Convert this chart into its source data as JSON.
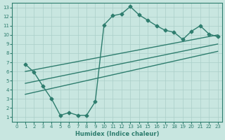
{
  "xlabel": "Humidex (Indice chaleur)",
  "xlim": [
    -0.5,
    23.5
  ],
  "ylim": [
    0.5,
    13.5
  ],
  "xticks": [
    0,
    1,
    2,
    3,
    4,
    5,
    6,
    7,
    8,
    9,
    10,
    11,
    12,
    13,
    14,
    15,
    16,
    17,
    18,
    19,
    20,
    21,
    22,
    23
  ],
  "yticks": [
    1,
    2,
    3,
    4,
    5,
    6,
    7,
    8,
    9,
    10,
    11,
    12,
    13
  ],
  "line_color": "#2e7d6e",
  "bg_color": "#c8e6e0",
  "grid_color": "#aacec8",
  "curve_x": [
    1,
    2,
    3,
    4,
    5,
    6,
    7,
    8,
    9,
    10,
    11,
    12,
    13,
    14,
    15,
    16,
    17,
    18,
    19,
    20,
    21,
    22,
    23
  ],
  "curve_y": [
    6.8,
    5.9,
    4.4,
    3.0,
    1.2,
    1.5,
    1.2,
    1.2,
    2.7,
    11.1,
    12.1,
    12.3,
    13.1,
    12.2,
    11.6,
    11.0,
    10.5,
    10.3,
    9.5,
    10.4,
    11.0,
    10.1,
    9.8
  ],
  "line2_x": [
    1,
    23
  ],
  "line2_y": [
    6.0,
    10.0
  ],
  "line3_x": [
    1,
    23
  ],
  "line3_y": [
    4.7,
    9.0
  ],
  "line4_x": [
    1,
    23
  ],
  "line4_y": [
    3.5,
    8.2
  ],
  "marker": "D",
  "marker_size": 2.5,
  "line_width": 1.0,
  "xlabel_fontsize": 6,
  "tick_fontsize": 5
}
